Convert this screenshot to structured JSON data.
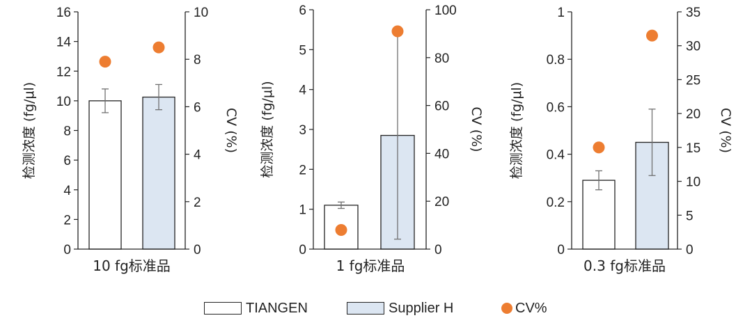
{
  "colors": {
    "tiangen_fill": "#ffffff",
    "supplier_fill": "#dce6f2",
    "cv_dot": "#ed7d31",
    "axis": "#222222",
    "errorbar": "#707070"
  },
  "legend": {
    "tiangen": "TIANGEN",
    "supplier": "Supplier H",
    "cv": "CV%"
  },
  "chart_data": [
    {
      "type": "bar",
      "category_label": "10 fg标准品",
      "ylabel": "检测浓度 (fg/μl)",
      "y2label": "CV (%)",
      "ylim": [
        0,
        16
      ],
      "yticks": [
        "0",
        "2",
        "4",
        "6",
        "8",
        "10",
        "12",
        "14",
        "16"
      ],
      "y2lim": [
        0,
        10
      ],
      "y2ticks": [
        "0",
        "2",
        "4",
        "6",
        "8",
        "10"
      ],
      "series": [
        {
          "name": "TIANGEN",
          "value": 10.0,
          "error": 0.8
        },
        {
          "name": "Supplier H",
          "value": 10.25,
          "error": 0.85
        }
      ],
      "cv": [
        7.9,
        8.5
      ]
    },
    {
      "type": "bar",
      "category_label": "1 fg标准品",
      "ylabel": "检测浓度 (fg/μl)",
      "y2label": "CV (%)",
      "ylim": [
        0,
        6
      ],
      "yticks": [
        "0",
        "1",
        "2",
        "3",
        "4",
        "5",
        "6"
      ],
      "y2lim": [
        0,
        100
      ],
      "y2ticks": [
        "0",
        "20",
        "40",
        "60",
        "80",
        "100"
      ],
      "series": [
        {
          "name": "TIANGEN",
          "value": 1.1,
          "error": 0.08
        },
        {
          "name": "Supplier H",
          "value": 2.85,
          "error": 2.6
        }
      ],
      "cv": [
        8,
        91
      ]
    },
    {
      "type": "bar",
      "category_label": "0.3 fg标准品",
      "ylabel": "检测浓度 (fg/μl)",
      "y2label": "CV (%)",
      "ylim": [
        0,
        1
      ],
      "yticks": [
        "0",
        "0.2",
        "0.4",
        "0.6",
        "0.8",
        "1"
      ],
      "y2lim": [
        0,
        35
      ],
      "y2ticks": [
        "0",
        "5",
        "10",
        "15",
        "20",
        "25",
        "30",
        "35"
      ],
      "series": [
        {
          "name": "TIANGEN",
          "value": 0.29,
          "error": 0.04
        },
        {
          "name": "Supplier H",
          "value": 0.45,
          "error": 0.14
        }
      ],
      "cv": [
        15,
        31.5
      ]
    }
  ]
}
